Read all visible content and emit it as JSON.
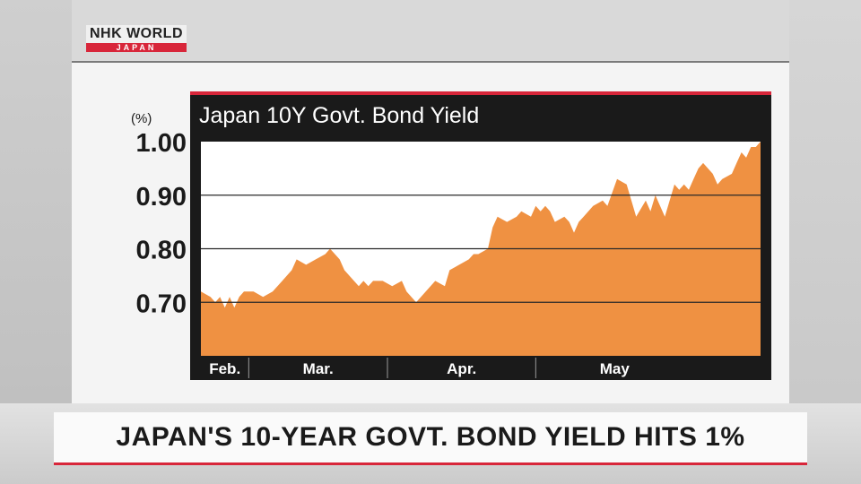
{
  "logo": {
    "main": "NHK WORLD",
    "sub": "JAPAN"
  },
  "headline": "JAPAN'S 10-YEAR GOVT. BOND YIELD HITS 1%",
  "colors": {
    "area": "#ef9142",
    "frame": "#1a1a1a",
    "accent": "#d8263a"
  },
  "chart_data": {
    "type": "area",
    "title": "Japan 10Y Govt. Bond Yield",
    "ylabel": "(%)",
    "ylim": [
      0.6,
      1.0
    ],
    "yticks": [
      "1.00",
      "0.90",
      "0.80",
      "0.70"
    ],
    "x_periods": [
      "Feb.",
      "Mar.",
      "Apr.",
      "May"
    ],
    "x_range_days": [
      0,
      117
    ],
    "period_starts": [
      0,
      10,
      39,
      70,
      103
    ],
    "grid": true,
    "series": [
      {
        "x": [
          0,
          2,
          3,
          4,
          5,
          6,
          7,
          8,
          9,
          11,
          13,
          15,
          17,
          19,
          20,
          22,
          24,
          26,
          27,
          29,
          30,
          32,
          33,
          34,
          35,
          36,
          38,
          40,
          42,
          43,
          45,
          47,
          49,
          51,
          52,
          54,
          56,
          57,
          58,
          60,
          61,
          62,
          64,
          66,
          67,
          69,
          70,
          71,
          72,
          73,
          74,
          76,
          77,
          78,
          79,
          80,
          82,
          84,
          85,
          87,
          89,
          91,
          93,
          94,
          95,
          96,
          97,
          99,
          100,
          101,
          102,
          103,
          104,
          105,
          107,
          108,
          109,
          111,
          112,
          113,
          114,
          115,
          116,
          117
        ],
        "values": [
          0.72,
          0.71,
          0.7,
          0.71,
          0.69,
          0.71,
          0.69,
          0.71,
          0.72,
          0.72,
          0.71,
          0.72,
          0.74,
          0.76,
          0.78,
          0.77,
          0.78,
          0.79,
          0.8,
          0.78,
          0.76,
          0.74,
          0.73,
          0.74,
          0.73,
          0.74,
          0.74,
          0.73,
          0.74,
          0.72,
          0.7,
          0.72,
          0.74,
          0.73,
          0.76,
          0.77,
          0.78,
          0.79,
          0.79,
          0.8,
          0.84,
          0.86,
          0.85,
          0.86,
          0.87,
          0.86,
          0.88,
          0.87,
          0.88,
          0.87,
          0.85,
          0.86,
          0.85,
          0.83,
          0.85,
          0.86,
          0.88,
          0.89,
          0.88,
          0.93,
          0.92,
          0.86,
          0.89,
          0.87,
          0.9,
          0.88,
          0.86,
          0.92,
          0.91,
          0.92,
          0.91,
          0.93,
          0.95,
          0.96,
          0.94,
          0.92,
          0.93,
          0.94,
          0.96,
          0.98,
          0.97,
          0.99,
          0.99,
          1.0
        ]
      }
    ]
  }
}
